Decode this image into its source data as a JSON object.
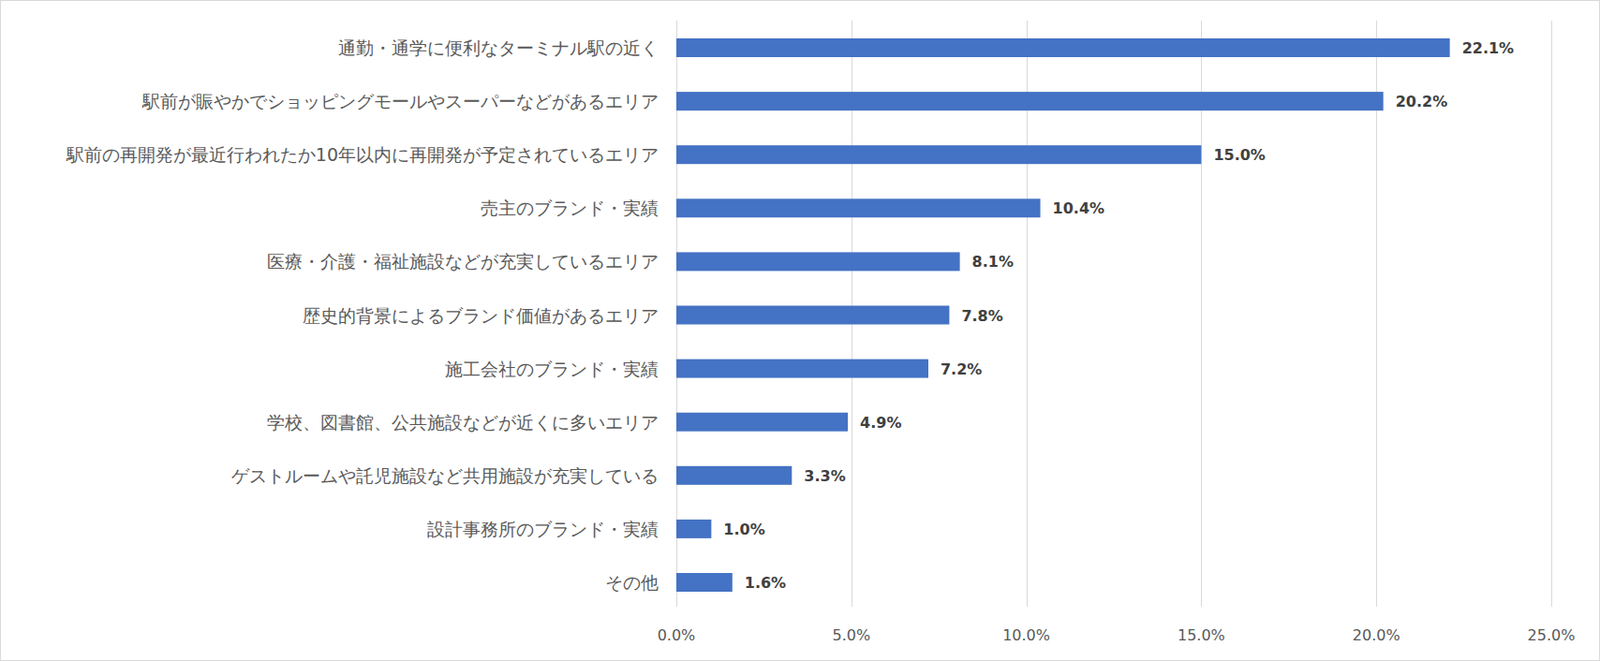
{
  "chart_data": {
    "type": "bar",
    "orientation": "horizontal",
    "categories": [
      "通勤・通学に便利なターミナル駅の近く",
      "駅前が賑やかでショッピングモールやスーパーなどがあるエリア",
      "駅前の再開発が最近行われたか10年以内に再開発が予定されているエリア",
      "売主のブランド・実績",
      "医療・介護・福祉施設などが充実しているエリア",
      "歴史的背景によるブランド価値があるエリア",
      "施工会社のブランド・実績",
      "学校、図書館、公共施設などが近くに多いエリア",
      "ゲストルームや託児施設など共用施設が充実している",
      "設計事務所のブランド・実績",
      "その他"
    ],
    "values": [
      22.1,
      20.2,
      15.0,
      10.4,
      8.1,
      7.8,
      7.2,
      4.9,
      3.3,
      1.0,
      1.6
    ],
    "value_labels": [
      "22.1%",
      "20.2%",
      "15.0%",
      "10.4%",
      "8.1%",
      "7.8%",
      "7.2%",
      "4.9%",
      "3.3%",
      "1.0%",
      "1.6%"
    ],
    "color": "#4472c4",
    "xlim": [
      0,
      25
    ],
    "xticks": [
      {
        "value": 0,
        "label": "0.0%"
      },
      {
        "value": 5,
        "label": "5.0%"
      },
      {
        "value": 10,
        "label": "10.0%"
      },
      {
        "value": 15,
        "label": "15.0%"
      },
      {
        "value": 20,
        "label": "20.0%"
      },
      {
        "value": 25,
        "label": "25.0%"
      }
    ],
    "grid": true,
    "data_labels": true
  }
}
